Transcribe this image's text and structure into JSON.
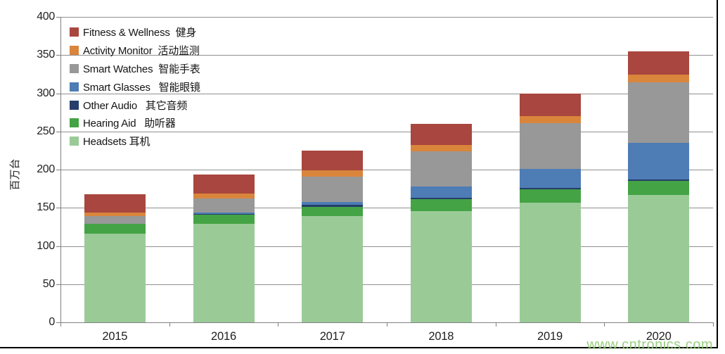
{
  "chart_data": {
    "type": "bar",
    "stacked": true,
    "title": "",
    "xlabel": "",
    "ylabel": "百万台",
    "ylim": [
      0,
      400
    ],
    "yticks": [
      0,
      50,
      100,
      150,
      200,
      250,
      300,
      350,
      400
    ],
    "grid": true,
    "legend_position": "top-left",
    "categories": [
      "2015",
      "2016",
      "2017",
      "2018",
      "2019",
      "2020"
    ],
    "series": [
      {
        "name_en": "Headsets",
        "name_zh": "耳机",
        "label": "Headsets 耳机",
        "color": "#9ACB97",
        "values": [
          116,
          129,
          139,
          146,
          157,
          167
        ]
      },
      {
        "name_en": "Hearing Aid",
        "name_zh": "助听器",
        "label": "Hearing Aid   助听器",
        "color": "#44A344",
        "values": [
          13,
          12,
          12,
          15,
          17,
          18
        ]
      },
      {
        "name_en": "Other Audio",
        "name_zh": "其它音频",
        "label": "Other Audio   其它音频",
        "color": "#253E6B",
        "values": [
          0,
          1,
          3,
          2,
          2,
          2
        ]
      },
      {
        "name_en": "Smart Glasses",
        "name_zh": "智能眼镜",
        "label": "Smart Glasses   智能眼镜",
        "color": "#4E7CB5",
        "values": [
          0,
          2,
          4,
          15,
          25,
          48
        ]
      },
      {
        "name_en": "Smart Watches",
        "name_zh": "智能手表",
        "label": "Smart Watches  智能手表",
        "color": "#989898",
        "values": [
          10,
          18,
          33,
          46,
          60,
          79
        ]
      },
      {
        "name_en": "Activity Monitor",
        "name_zh": "活动监测",
        "label": "Activity Monitor  活动监测",
        "color": "#D9853C",
        "values": [
          5,
          7,
          8,
          8,
          9,
          10
        ]
      },
      {
        "name_en": "Fitness & Wellness",
        "name_zh": "健身",
        "label": "Fitness & Wellness  健身",
        "color": "#A8463F",
        "values": [
          24,
          25,
          26,
          28,
          30,
          31
        ]
      }
    ],
    "totals": [
      168,
      194,
      225,
      260,
      300,
      355
    ]
  },
  "watermark": {
    "text": "www.cntronics.com",
    "color": "#8CC870"
  },
  "frame": {
    "border_color": "#000000"
  },
  "axis_color": "#808080"
}
